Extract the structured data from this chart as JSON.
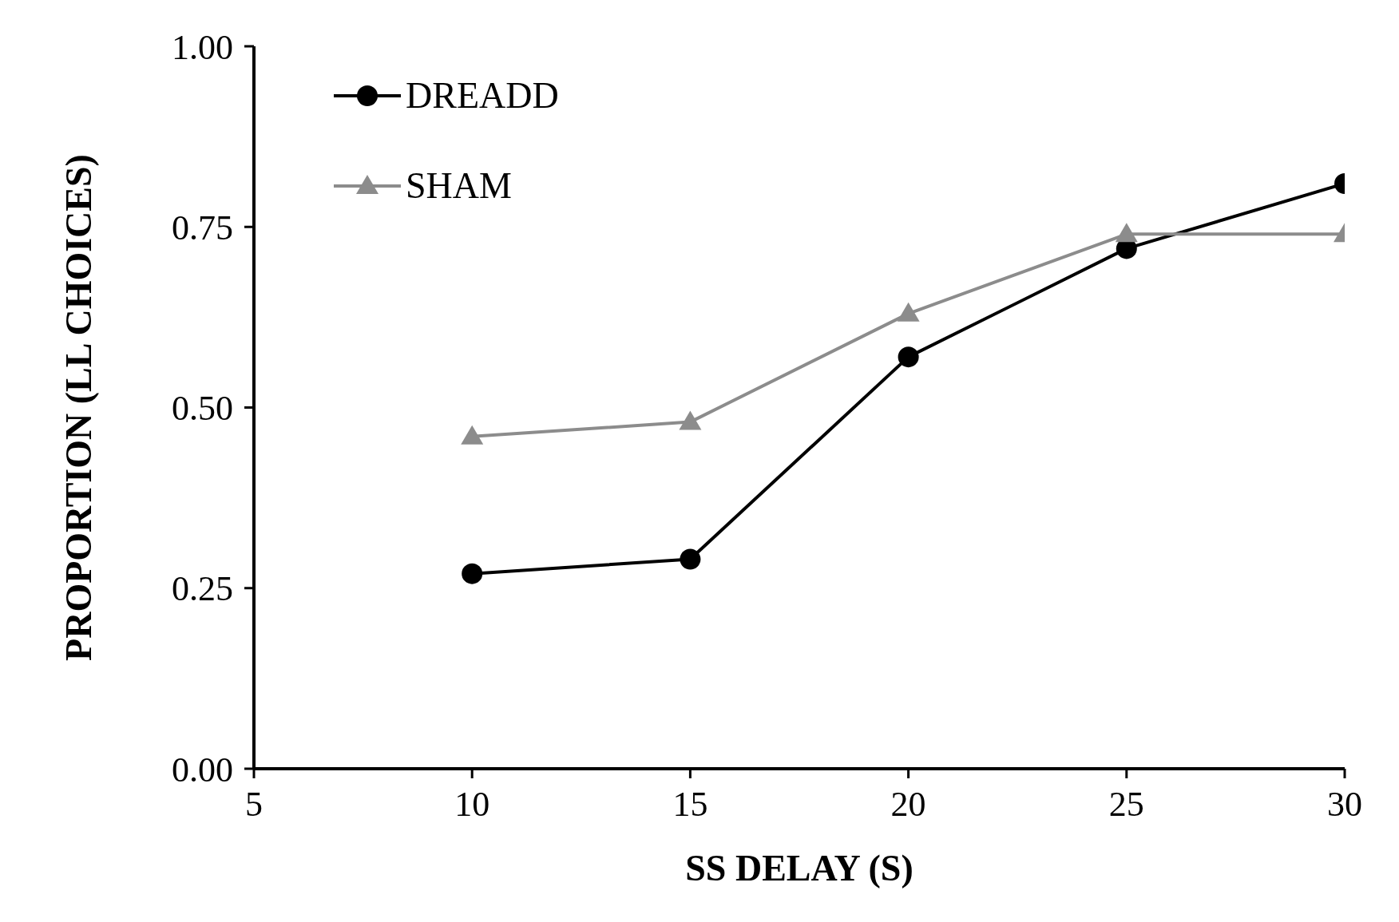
{
  "chart_data": {
    "type": "line",
    "xlabel": "SS DELAY (S)",
    "ylabel": "PROPORTION (LL CHOICES)",
    "x": [
      10,
      15,
      20,
      25,
      30
    ],
    "series": [
      {
        "name": "DREADD",
        "color": "#000000",
        "marker": "circle",
        "values": [
          0.27,
          0.29,
          0.57,
          0.72,
          0.81
        ]
      },
      {
        "name": "SHAM",
        "color": "#8c8c8c",
        "marker": "triangle",
        "values": [
          0.46,
          0.48,
          0.63,
          0.74,
          0.74
        ]
      }
    ],
    "xlim": [
      5,
      30
    ],
    "xticks": [
      5,
      10,
      15,
      20,
      25,
      30
    ],
    "ylim": [
      0,
      1
    ],
    "yticks": [
      {
        "value": 0,
        "label": "0.00"
      },
      {
        "value": 0.25,
        "label": "0.25"
      },
      {
        "value": 0.5,
        "label": "0.50"
      },
      {
        "value": 0.75,
        "label": "0.75"
      },
      {
        "value": 1,
        "label": "1.00"
      }
    ],
    "grid": false,
    "legend": "top left",
    "line_style": "solid"
  }
}
